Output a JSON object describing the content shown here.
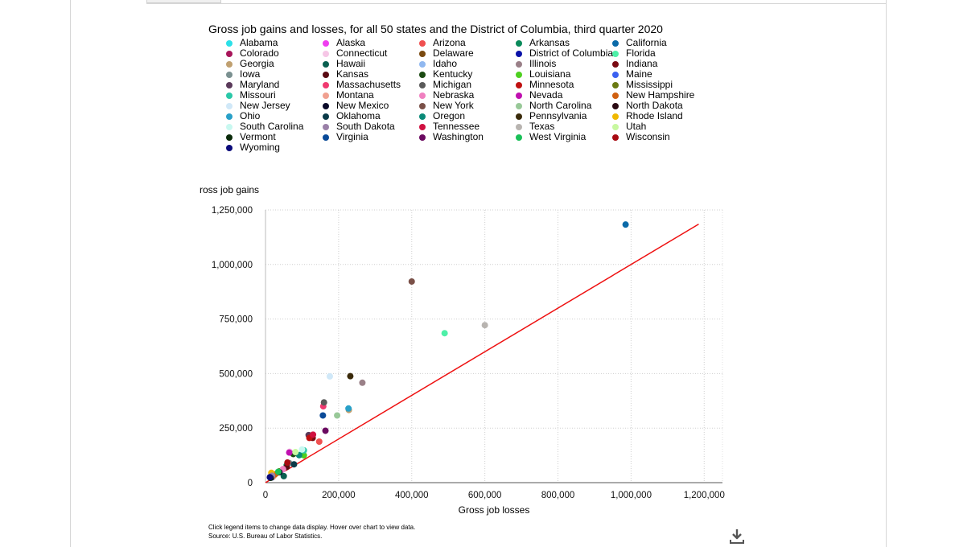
{
  "chart_data": {
    "type": "scatter",
    "title": "Gross job gains and losses, for all 50 states and the District of Columbia, third quarter 2020",
    "xlabel": "Gross job losses",
    "ylabel": "ross job gains",
    "xlim": [
      0,
      1250000
    ],
    "ylim": [
      0,
      1250000
    ],
    "x_ticks": [
      0,
      200000,
      400000,
      600000,
      800000,
      1000000,
      1200000
    ],
    "x_tick_labels": [
      "0",
      "200,000",
      "400,000",
      "600,000",
      "800,000",
      "1,000,000",
      "1,200,000"
    ],
    "y_ticks": [
      0,
      250000,
      500000,
      750000,
      1000000,
      1250000
    ],
    "y_tick_labels": [
      "0",
      "250,000",
      "500,000",
      "750,000",
      "1,000,000",
      "1,250,000"
    ],
    "grid": true,
    "legend_position": "top",
    "reference_line": {
      "color": "#ee1111",
      "from": [
        0,
        0
      ],
      "to": [
        1185000,
        1185000
      ]
    },
    "series": [
      {
        "name": "Alabama",
        "color": "#2ce0e8",
        "x": 96000,
        "y": 128000
      },
      {
        "name": "Alaska",
        "color": "#ef3ef0",
        "x": 18000,
        "y": 25000
      },
      {
        "name": "Arizona",
        "color": "#f05050",
        "x": 147000,
        "y": 188000
      },
      {
        "name": "Arkansas",
        "color": "#0a8a5a",
        "x": 58000,
        "y": 80000
      },
      {
        "name": "California",
        "color": "#0a6aa8",
        "x": 985000,
        "y": 1183000
      },
      {
        "name": "Colorado",
        "color": "#a8155a",
        "x": 127000,
        "y": 215000
      },
      {
        "name": "Connecticut",
        "color": "#f6c6e6",
        "x": 66000,
        "y": 142000
      },
      {
        "name": "Delaware",
        "color": "#7a4a10",
        "x": 20000,
        "y": 27000
      },
      {
        "name": "District of Columbia",
        "color": "#0a12a8",
        "x": 17000,
        "y": 24000
      },
      {
        "name": "Florida",
        "color": "#4ef0a8",
        "x": 490000,
        "y": 685000
      },
      {
        "name": "Georgia",
        "color": "#c0a070",
        "x": 228000,
        "y": 333000
      },
      {
        "name": "Hawaii",
        "color": "#0a6050",
        "x": 50000,
        "y": 30000
      },
      {
        "name": "Idaho",
        "color": "#90b8f0",
        "x": 47000,
        "y": 60000
      },
      {
        "name": "Illinois",
        "color": "#9a8088",
        "x": 265000,
        "y": 458000
      },
      {
        "name": "Indiana",
        "color": "#7a0a12",
        "x": 129000,
        "y": 205000
      },
      {
        "name": "Iowa",
        "color": "#7a9090",
        "x": 65000,
        "y": 90000
      },
      {
        "name": "Kansas",
        "color": "#5a0a12",
        "x": 58000,
        "y": 72000
      },
      {
        "name": "Kentucky",
        "color": "#1a4a12",
        "x": 76000,
        "y": 131000
      },
      {
        "name": "Louisiana",
        "color": "#4ed020",
        "x": 105000,
        "y": 125000
      },
      {
        "name": "Maine",
        "color": "#3a60f0",
        "x": 17000,
        "y": 30000
      },
      {
        "name": "Maryland",
        "color": "#5a3a5a",
        "x": 118000,
        "y": 218000
      },
      {
        "name": "Massachusetts",
        "color": "#f03a70",
        "x": 158000,
        "y": 350000
      },
      {
        "name": "Michigan",
        "color": "#5a5a5a",
        "x": 160000,
        "y": 368000
      },
      {
        "name": "Minnesota",
        "color": "#c01010",
        "x": 120000,
        "y": 205000
      },
      {
        "name": "Mississippi",
        "color": "#6a7a12",
        "x": 38000,
        "y": 52000
      },
      {
        "name": "Missouri",
        "color": "#2ac8a8",
        "x": 105000,
        "y": 148000
      },
      {
        "name": "Montana",
        "color": "#f0a090",
        "x": 22000,
        "y": 30000
      },
      {
        "name": "Nebraska",
        "color": "#f080c0",
        "x": 48000,
        "y": 62000
      },
      {
        "name": "Nevada",
        "color": "#c010b0",
        "x": 65000,
        "y": 138000
      },
      {
        "name": "New Hampshire",
        "color": "#d06010",
        "x": 26000,
        "y": 38000
      },
      {
        "name": "New Jersey",
        "color": "#d0e8f8",
        "x": 176000,
        "y": 487000
      },
      {
        "name": "New Mexico",
        "color": "#0a0a2a",
        "x": 38000,
        "y": 48000
      },
      {
        "name": "New York",
        "color": "#7a5048",
        "x": 400000,
        "y": 922000
      },
      {
        "name": "North Carolina",
        "color": "#98c898",
        "x": 196000,
        "y": 308000
      },
      {
        "name": "North Dakota",
        "color": "#2a0a12",
        "x": 17000,
        "y": 28000
      },
      {
        "name": "Ohio",
        "color": "#28a0c8",
        "x": 227000,
        "y": 340000
      },
      {
        "name": "Oklahoma",
        "color": "#0a3a48",
        "x": 78000,
        "y": 84000
      },
      {
        "name": "Oregon",
        "color": "#0a8a78",
        "x": 92000,
        "y": 126000
      },
      {
        "name": "Pennsylvania",
        "color": "#3a2a0a",
        "x": 232000,
        "y": 488000
      },
      {
        "name": "Rhode Island",
        "color": "#f0b800",
        "x": 16000,
        "y": 45000
      },
      {
        "name": "South Carolina",
        "color": "#c8f8f0",
        "x": 100000,
        "y": 152000
      },
      {
        "name": "South Dakota",
        "color": "#9a80a8",
        "x": 18000,
        "y": 32000
      },
      {
        "name": "Tennessee",
        "color": "#d01040",
        "x": 130000,
        "y": 220000
      },
      {
        "name": "Texas",
        "color": "#b8b4b0",
        "x": 600000,
        "y": 722000
      },
      {
        "name": "Utah",
        "color": "#c8f8a0",
        "x": 82000,
        "y": 140000
      },
      {
        "name": "Vermont",
        "color": "#0a2a0a",
        "x": 14000,
        "y": 22000
      },
      {
        "name": "Virginia",
        "color": "#0a4a98",
        "x": 157000,
        "y": 308000
      },
      {
        "name": "Washington",
        "color": "#6a0a60",
        "x": 164000,
        "y": 238000
      },
      {
        "name": "West Virginia",
        "color": "#1ac058",
        "x": 35000,
        "y": 50000
      },
      {
        "name": "Wisconsin",
        "color": "#a80a12",
        "x": 60000,
        "y": 92000
      },
      {
        "name": "Wyoming",
        "color": "#0a0a7a",
        "x": 12000,
        "y": 25000
      }
    ]
  },
  "footer": {
    "note": "Click legend items to change data display. Hover over chart to view data.",
    "source": "Source: U.S. Bureau of Labor Statistics."
  },
  "icons": {
    "download": "download-icon"
  }
}
